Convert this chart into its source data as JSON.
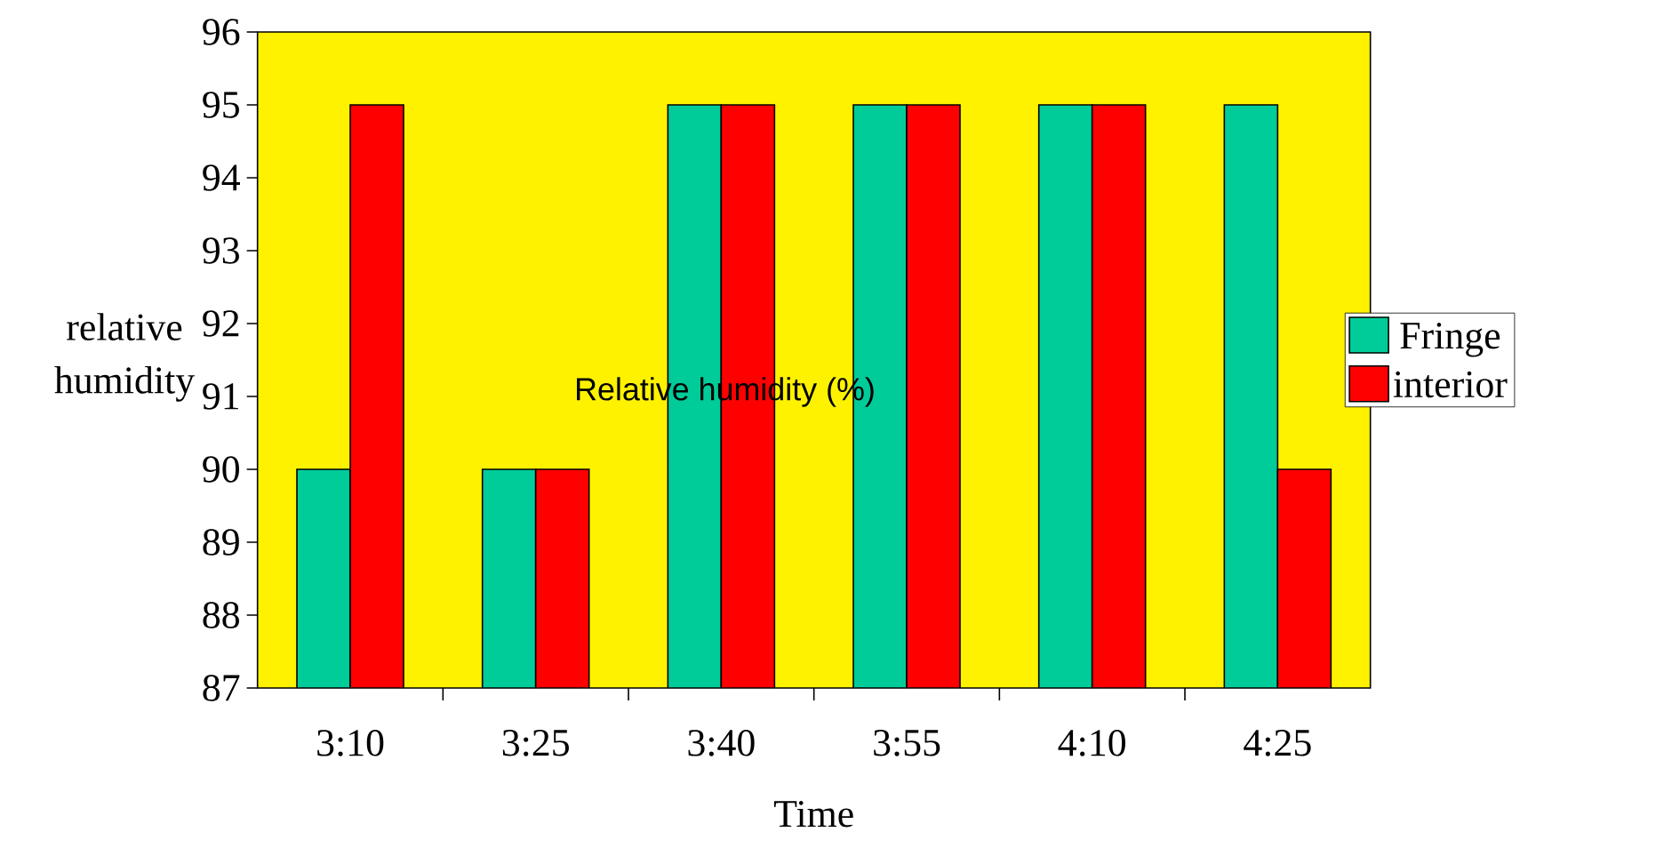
{
  "chart_data": {
    "type": "bar",
    "title": "Relative humidity (%)",
    "xlabel": "Time",
    "ylabel": "relative humidity",
    "categories": [
      "3:10",
      "3:25",
      "3:40",
      "3:55",
      "4:10",
      "4:25"
    ],
    "series": [
      {
        "name": "Fringe",
        "color": "#00cc99",
        "values": [
          90,
          90,
          95,
          95,
          95,
          95
        ]
      },
      {
        "name": "interior",
        "color": "#ff0000",
        "values": [
          95,
          90,
          95,
          95,
          95,
          90
        ]
      }
    ],
    "ylim": [
      87,
      96
    ],
    "yticks": [
      87,
      88,
      89,
      90,
      91,
      92,
      93,
      94,
      95,
      96
    ],
    "grid": false,
    "legend": "right"
  }
}
